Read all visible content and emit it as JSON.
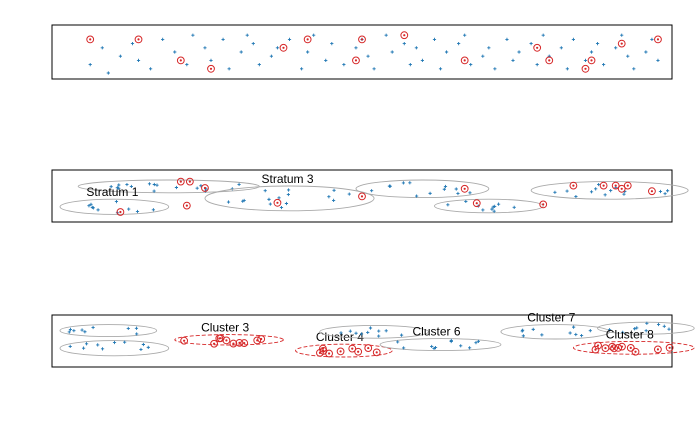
{
  "colors": {
    "point": "#1f77b4",
    "selected": "#d62728",
    "ellipse": "#aaaaaa",
    "cluster_selected": "#d62728",
    "frame": "#000000"
  },
  "chart_data": [
    {
      "type": "scatter",
      "title": "",
      "xlim": [
        0,
        100
      ],
      "ylim": [
        0,
        10
      ],
      "points": [
        [
          5,
          2
        ],
        [
          7,
          6
        ],
        [
          8,
          0
        ],
        [
          10,
          4
        ],
        [
          12,
          7
        ],
        [
          13,
          3
        ],
        [
          15,
          1
        ],
        [
          17,
          8
        ],
        [
          19,
          5
        ],
        [
          21,
          2
        ],
        [
          22,
          9
        ],
        [
          24,
          6
        ],
        [
          25,
          3
        ],
        [
          27,
          8
        ],
        [
          28,
          1
        ],
        [
          30,
          5
        ],
        [
          31,
          9
        ],
        [
          32,
          7
        ],
        [
          33,
          2
        ],
        [
          35,
          4
        ],
        [
          36,
          6
        ],
        [
          38,
          8
        ],
        [
          40,
          1
        ],
        [
          41,
          5
        ],
        [
          42,
          9
        ],
        [
          44,
          3
        ],
        [
          45,
          7
        ],
        [
          47,
          2
        ],
        [
          49,
          6
        ],
        [
          50,
          8
        ],
        [
          51,
          4
        ],
        [
          52,
          1
        ],
        [
          54,
          9
        ],
        [
          55,
          5
        ],
        [
          57,
          7
        ],
        [
          58,
          2
        ],
        [
          59,
          6
        ],
        [
          60,
          3
        ],
        [
          62,
          8
        ],
        [
          63,
          1
        ],
        [
          64,
          5
        ],
        [
          66,
          7
        ],
        [
          67,
          9
        ],
        [
          68,
          2
        ],
        [
          70,
          4
        ],
        [
          71,
          6
        ],
        [
          72,
          1
        ],
        [
          74,
          8
        ],
        [
          75,
          3
        ],
        [
          76,
          5
        ],
        [
          78,
          7
        ],
        [
          79,
          2
        ],
        [
          80,
          9
        ],
        [
          81,
          4
        ],
        [
          83,
          6
        ],
        [
          84,
          1
        ],
        [
          85,
          8
        ],
        [
          87,
          3
        ],
        [
          88,
          5
        ],
        [
          89,
          7
        ],
        [
          90,
          2
        ],
        [
          92,
          6
        ],
        [
          93,
          9
        ],
        [
          94,
          4
        ],
        [
          95,
          1
        ],
        [
          97,
          5
        ],
        [
          98,
          8
        ],
        [
          99,
          3
        ]
      ],
      "selected": [
        [
          5,
          8
        ],
        [
          13,
          8
        ],
        [
          20,
          3
        ],
        [
          25,
          1
        ],
        [
          37,
          6
        ],
        [
          41,
          8
        ],
        [
          49,
          3
        ],
        [
          50,
          8
        ],
        [
          57,
          9
        ],
        [
          67,
          3
        ],
        [
          79,
          6
        ],
        [
          81,
          3
        ],
        [
          87,
          1
        ],
        [
          88,
          3
        ],
        [
          93,
          7
        ],
        [
          99,
          8
        ]
      ]
    },
    {
      "type": "scatter",
      "title": "",
      "xlim": [
        0,
        100
      ],
      "ylim": [
        0,
        10
      ],
      "ellipses": [
        {
          "cx": 18,
          "cy": 7.4,
          "rx": 15,
          "ry": 1.6,
          "label": ""
        },
        {
          "cx": 9,
          "cy": 2.3,
          "rx": 9,
          "ry": 1.9,
          "label": "Stratum 1"
        },
        {
          "cx": 38,
          "cy": 4.4,
          "rx": 14,
          "ry": 3.1,
          "label": "Stratum 3"
        },
        {
          "cx": 60,
          "cy": 6.8,
          "rx": 11,
          "ry": 2.2,
          "label": ""
        },
        {
          "cx": 71,
          "cy": 2.5,
          "rx": 9,
          "ry": 1.7,
          "label": ""
        },
        {
          "cx": 91,
          "cy": 6.4,
          "rx": 13,
          "ry": 2.2,
          "label": ""
        }
      ],
      "selected": [
        [
          20,
          8.6
        ],
        [
          21.5,
          8.6
        ],
        [
          24,
          7
        ],
        [
          10,
          1
        ],
        [
          21,
          2.6
        ],
        [
          36,
          3.3
        ],
        [
          50,
          4.9
        ],
        [
          67,
          6.8
        ],
        [
          69,
          3.2
        ],
        [
          80,
          2.9
        ],
        [
          85,
          7.6
        ],
        [
          90,
          7.6
        ],
        [
          92,
          7.6
        ],
        [
          94,
          7.6
        ],
        [
          93,
          6.8
        ],
        [
          98,
          6.2
        ]
      ]
    },
    {
      "type": "scatter",
      "title": "",
      "xlim": [
        0,
        100
      ],
      "ylim": [
        0,
        10
      ],
      "ellipses": [
        {
          "cx": 8,
          "cy": 7.6,
          "rx": 8,
          "ry": 1.5,
          "label": ""
        },
        {
          "cx": 9,
          "cy": 3.2,
          "rx": 9,
          "ry": 1.9,
          "label": ""
        },
        {
          "cx": 28,
          "cy": 5.3,
          "rx": 9,
          "ry": 1.3,
          "label": "Cluster 3",
          "selected": true
        },
        {
          "cx": 47,
          "cy": 2.6,
          "rx": 8,
          "ry": 1.6,
          "label": "Cluster 4",
          "selected": true
        },
        {
          "cx": 52,
          "cy": 7.3,
          "rx": 9,
          "ry": 1.6,
          "label": ""
        },
        {
          "cx": 63,
          "cy": 4.1,
          "rx": 10,
          "ry": 1.5,
          "label": "Cluster 6"
        },
        {
          "cx": 82,
          "cy": 7.3,
          "rx": 9,
          "ry": 1.8,
          "label": "Cluster 7"
        },
        {
          "cx": 97,
          "cy": 8.2,
          "rx": 8,
          "ry": 1.5,
          "label": ""
        },
        {
          "cx": 95,
          "cy": 3.3,
          "rx": 10,
          "ry": 1.6,
          "label": "Cluster 8",
          "selected": true
        }
      ]
    }
  ]
}
